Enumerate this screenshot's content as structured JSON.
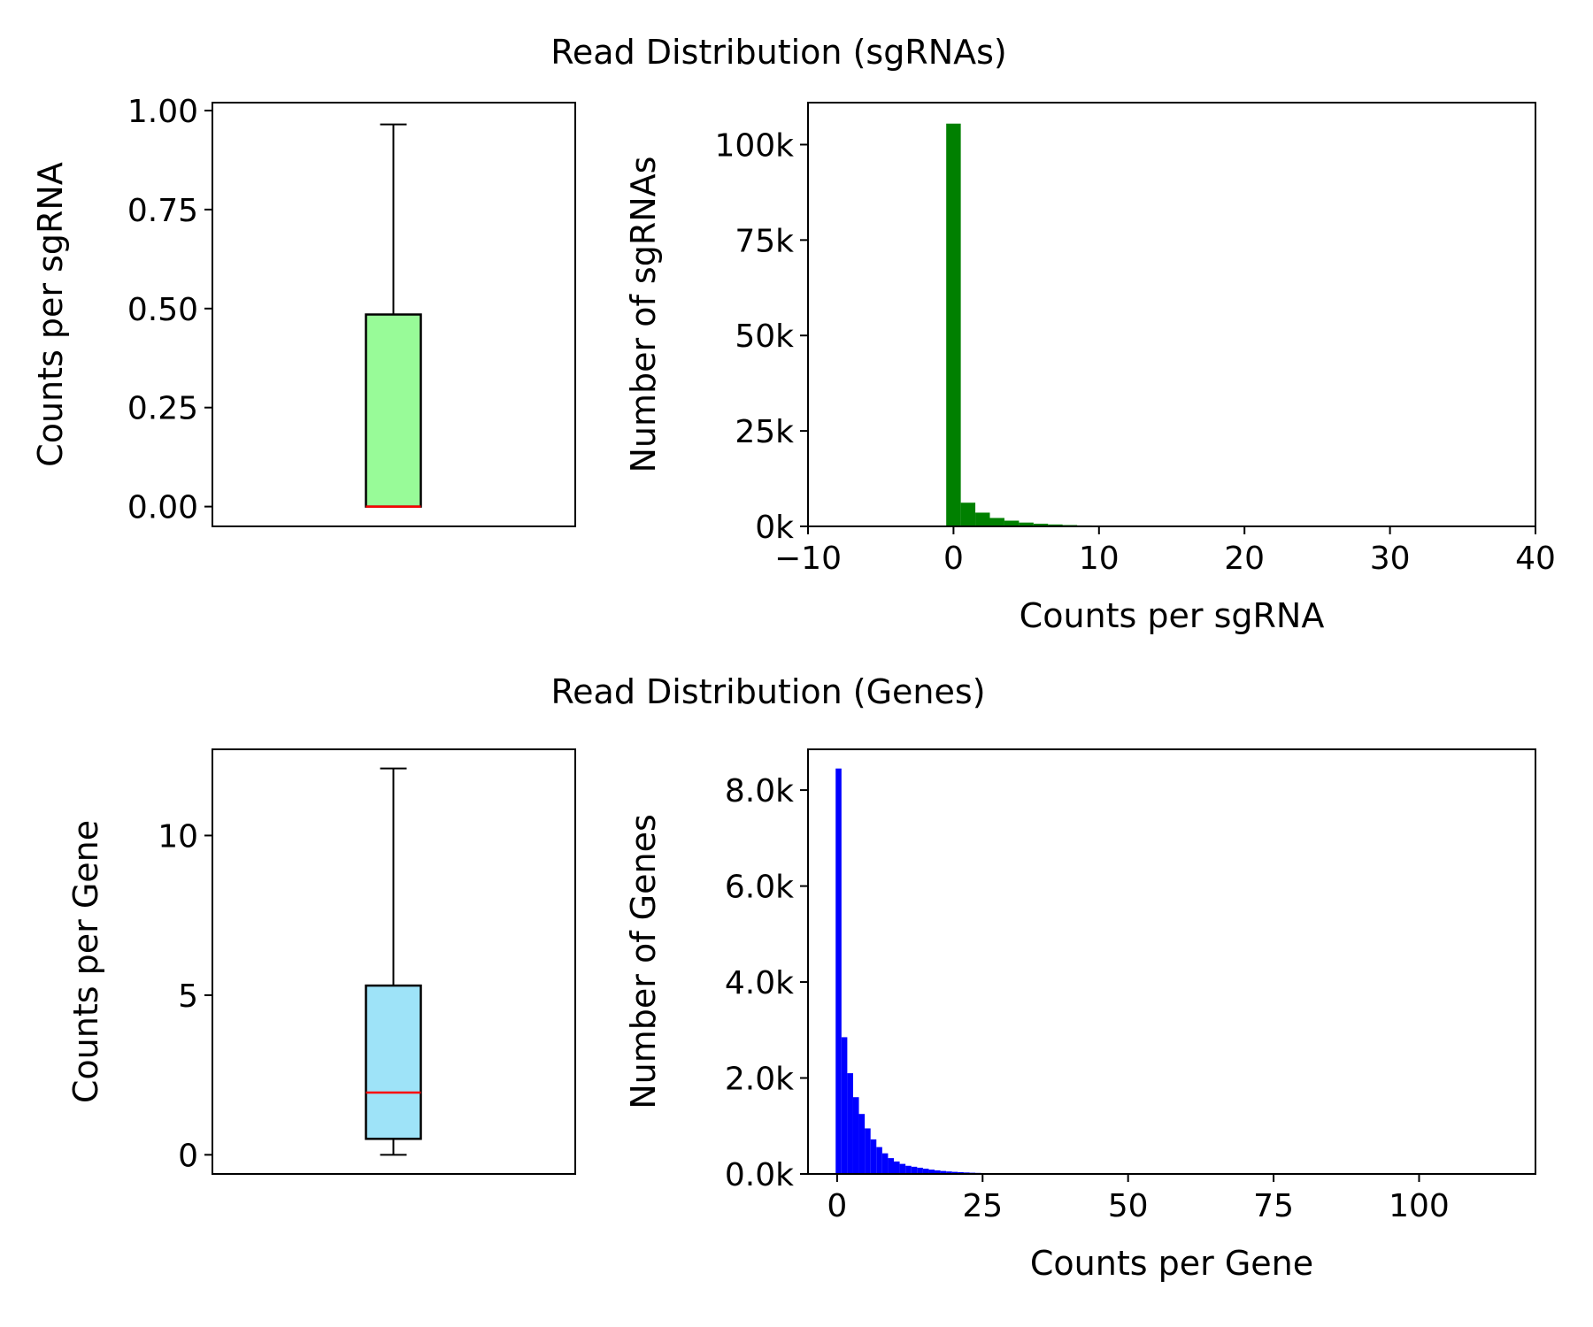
{
  "chart_data": [
    {
      "type": "box",
      "suptitle": "Read Distribution (sgRNAs)",
      "ylabel": "Counts per sgRNA",
      "ylim": [
        -0.05,
        1.02
      ],
      "yticks": [
        0.0,
        0.25,
        0.5,
        0.75,
        1.0
      ],
      "yticklabels": [
        "0.00",
        "0.25",
        "0.50",
        "0.75",
        "1.00"
      ],
      "box": {
        "whisker_low": 0.0,
        "q1": 0.0,
        "median": 0.0,
        "q3": 0.485,
        "whisker_high": 0.965
      },
      "box_color": "#98fb98",
      "median_color": "#ff0000"
    },
    {
      "type": "bar",
      "xlabel": "Counts per sgRNA",
      "ylabel": "Number of sgRNAs",
      "xlim": [
        -10,
        40
      ],
      "ylim": [
        0,
        111000
      ],
      "xticks": [
        -10,
        0,
        10,
        20,
        30,
        40
      ],
      "xticklabels": [
        "−10",
        "0",
        "10",
        "20",
        "30",
        "40"
      ],
      "yticks": [
        0,
        25000,
        50000,
        75000,
        100000
      ],
      "yticklabels": [
        "0k",
        "25k",
        "50k",
        "75k",
        "100k"
      ],
      "bin_start": -0.5,
      "bin_width": 1,
      "counts": [
        105500,
        6200,
        3600,
        2200,
        1500,
        1000,
        700,
        500,
        350,
        250,
        180,
        120,
        80,
        50,
        30,
        20,
        10
      ],
      "color": "#008000"
    },
    {
      "type": "box",
      "suptitle": "Read Distribution (Genes)",
      "ylabel": "Counts per Gene",
      "ylim": [
        -0.6,
        12.7
      ],
      "yticks": [
        0,
        5,
        10
      ],
      "yticklabels": [
        "0",
        "5",
        "10"
      ],
      "box": {
        "whisker_low": 0.0,
        "q1": 0.5,
        "median": 1.95,
        "q3": 5.3,
        "whisker_high": 12.1
      },
      "box_color": "#9ee3f8",
      "median_color": "#ff0000"
    },
    {
      "type": "bar",
      "xlabel": "Counts per Gene",
      "ylabel": "Number of Genes",
      "xlim": [
        -5,
        120
      ],
      "ylim": [
        0,
        8850
      ],
      "xticks": [
        0,
        25,
        50,
        75,
        100
      ],
      "xticklabels": [
        "0",
        "25",
        "50",
        "75",
        "100"
      ],
      "yticks": [
        0,
        2000,
        4000,
        6000,
        8000
      ],
      "yticklabels": [
        "0.0k",
        "2.0k",
        "4.0k",
        "6.0k",
        "8.0k"
      ],
      "bin_start": -0.25,
      "bin_width": 1,
      "counts": [
        8450,
        2850,
        2100,
        1600,
        1250,
        950,
        720,
        560,
        430,
        330,
        260,
        210,
        170,
        150,
        130,
        110,
        90,
        75,
        62,
        52,
        44,
        37,
        31,
        26,
        22,
        18,
        15,
        13,
        11,
        9,
        8,
        7,
        6,
        5,
        4,
        3,
        3,
        2,
        2,
        2,
        1,
        1
      ],
      "color": "#0000ff"
    }
  ]
}
